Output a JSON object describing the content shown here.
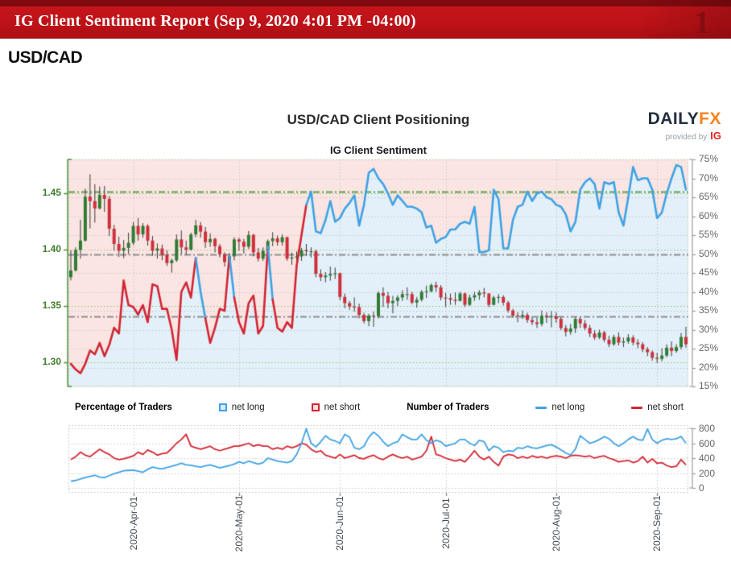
{
  "header": {
    "title": "IG Client Sentiment Report (Sep 9, 2020 4:01 PM -04:00)",
    "watermark": "1"
  },
  "page": {
    "instrument": "USD/CAD"
  },
  "chart": {
    "title": "USD/CAD Client Positioning",
    "subtitle": "IG Client Sentiment"
  },
  "brand": {
    "daily": "DAILY",
    "fx": "FX",
    "provided_by": "provided by",
    "ig": "IG"
  },
  "legend": {
    "pct_title": "Percentage of Traders",
    "num_title": "Number of Traders",
    "net_long": "net long",
    "net_short": "net short"
  },
  "colors": {
    "pink_fill": "#fbe5e3",
    "blue_fill": "#e3f0f9",
    "line_red": "#d42432",
    "line_blue": "#3ea2e5",
    "candle_green": "#2f7d33",
    "candle_red": "#cf2f3a",
    "wick": "#3a3a3a",
    "grid_green": "#96c479",
    "grid_gray": "#c9c9c9",
    "dashdot_gray": "#8d8d8d",
    "dashdot_green": "#5ea04b",
    "axis_green": "#4f8f3d",
    "axis_gray": "#9a9a9a",
    "header_red": "#bb1217"
  },
  "chart_data": {
    "type": "mixed",
    "subtypes": [
      "candlestick",
      "line",
      "area"
    ],
    "title": "USD/CAD Client Positioning",
    "subtitle": "IG Client Sentiment",
    "x_ticks": [
      "2020-Apr-01",
      "2020-May-01",
      "2020-Jun-01",
      "2020-Jul-01",
      "2020-Aug-01",
      "2020-Sep-01"
    ],
    "x_tick_day_index": [
      13,
      35,
      56,
      78,
      101,
      122
    ],
    "days_total": 129,
    "price_axis": {
      "labels": [
        "1.45",
        "1.40",
        "1.35",
        "1.30"
      ],
      "values": [
        1.45,
        1.4,
        1.35,
        1.3
      ],
      "range": [
        1.2785,
        1.4815
      ]
    },
    "pct_axis": {
      "labels": [
        "75%",
        "70%",
        "65%",
        "60%",
        "55%",
        "50%",
        "45%",
        "40%",
        "35%",
        "30%",
        "25%",
        "20%",
        "15%"
      ],
      "values": [
        75,
        70,
        65,
        60,
        55,
        50,
        45,
        40,
        35,
        30,
        25,
        20,
        15
      ],
      "range": [
        15,
        75
      ]
    },
    "count_axis": {
      "labels": [
        "800",
        "600",
        "400",
        "200",
        "0"
      ],
      "values": [
        800,
        600,
        400,
        200,
        0
      ],
      "range": [
        0,
        900
      ]
    },
    "reference_lines_pct": [
      {
        "value": 66.5,
        "style": "dashdot",
        "color": "green",
        "meaning": "current net-long pct"
      },
      {
        "value": 50.0,
        "style": "dashdot",
        "color": "gray",
        "meaning": "midline"
      },
      {
        "value": 33.5,
        "style": "dashdot",
        "color": "gray",
        "meaning": "current net-short pct"
      }
    ],
    "first_open": 1.3755,
    "candles": [
      [
        1.3815,
        1.3727,
        1.3995
      ],
      [
        1.3998,
        1.3805,
        1.402
      ],
      [
        1.408,
        1.392,
        1.4265
      ],
      [
        1.447,
        1.407,
        1.454
      ],
      [
        1.443,
        1.4188,
        1.4668
      ],
      [
        1.4365,
        1.424,
        1.458
      ],
      [
        1.4485,
        1.4355,
        1.456
      ],
      [
        1.445,
        1.4335,
        1.4565
      ],
      [
        1.4185,
        1.412,
        1.4475
      ],
      [
        1.405,
        1.399,
        1.422
      ],
      [
        1.399,
        1.3935,
        1.4115
      ],
      [
        1.4015,
        1.3925,
        1.4085
      ],
      [
        1.406,
        1.396,
        1.415
      ],
      [
        1.421,
        1.404,
        1.4245
      ],
      [
        1.4135,
        1.408,
        1.428
      ],
      [
        1.421,
        1.4105,
        1.4235
      ],
      [
        1.408,
        1.4035,
        1.4225
      ],
      [
        1.399,
        1.3945,
        1.412
      ],
      [
        1.401,
        1.392,
        1.4055
      ],
      [
        1.3955,
        1.3905,
        1.4045
      ],
      [
        1.388,
        1.3855,
        1.3995
      ],
      [
        1.3905,
        1.3795,
        1.392
      ],
      [
        1.409,
        1.389,
        1.4135
      ],
      [
        1.402,
        1.396,
        1.417
      ],
      [
        1.4,
        1.3955,
        1.408
      ],
      [
        1.4135,
        1.399,
        1.415
      ],
      [
        1.4215,
        1.411,
        1.4265
      ],
      [
        1.416,
        1.4105,
        1.4245
      ],
      [
        1.4065,
        1.4015,
        1.42
      ],
      [
        1.4095,
        1.4025,
        1.4145
      ],
      [
        1.403,
        1.3975,
        1.4105
      ],
      [
        1.396,
        1.393,
        1.405
      ],
      [
        1.389,
        1.385,
        1.3975
      ],
      [
        1.394,
        1.3845,
        1.397
      ],
      [
        1.409,
        1.3905,
        1.411
      ],
      [
        1.407,
        1.399,
        1.4105
      ],
      [
        1.4025,
        1.3965,
        1.4095
      ],
      [
        1.413,
        1.4005,
        1.4165
      ],
      [
        1.3975,
        1.394,
        1.414
      ],
      [
        1.392,
        1.3895,
        1.4015
      ],
      [
        1.399,
        1.39,
        1.402
      ],
      [
        1.4075,
        1.3955,
        1.409
      ],
      [
        1.41,
        1.403,
        1.4155
      ],
      [
        1.4065,
        1.4035,
        1.4125
      ],
      [
        1.411,
        1.4035,
        1.4135
      ],
      [
        1.392,
        1.39,
        1.4115
      ],
      [
        1.393,
        1.3865,
        1.3975
      ],
      [
        1.394,
        1.387,
        1.3985
      ],
      [
        1.3995,
        1.39,
        1.4015
      ],
      [
        1.3985,
        1.3945,
        1.405
      ],
      [
        1.3985,
        1.393,
        1.402
      ],
      [
        1.3785,
        1.3755,
        1.4
      ],
      [
        1.3755,
        1.372,
        1.3825
      ],
      [
        1.377,
        1.371,
        1.38
      ],
      [
        1.3785,
        1.3725,
        1.385
      ],
      [
        1.379,
        1.374,
        1.384
      ],
      [
        1.358,
        1.355,
        1.3795
      ],
      [
        1.3525,
        1.348,
        1.361
      ],
      [
        1.3495,
        1.3465,
        1.3545
      ],
      [
        1.349,
        1.345,
        1.3575
      ],
      [
        1.342,
        1.339,
        1.352
      ],
      [
        1.3365,
        1.3345,
        1.344
      ],
      [
        1.3415,
        1.332,
        1.343
      ],
      [
        1.341,
        1.3315,
        1.345
      ],
      [
        1.3615,
        1.339,
        1.363
      ],
      [
        1.359,
        1.349,
        1.3665
      ],
      [
        1.3525,
        1.348,
        1.3625
      ],
      [
        1.3545,
        1.3435,
        1.359
      ],
      [
        1.3575,
        1.35,
        1.3595
      ],
      [
        1.3605,
        1.3545,
        1.364
      ],
      [
        1.3605,
        1.3555,
        1.3665
      ],
      [
        1.353,
        1.3515,
        1.3625
      ],
      [
        1.3555,
        1.3485,
        1.358
      ],
      [
        1.3625,
        1.354,
        1.364
      ],
      [
        1.363,
        1.357,
        1.368
      ],
      [
        1.3685,
        1.362,
        1.37
      ],
      [
        1.3665,
        1.3625,
        1.3715
      ],
      [
        1.3575,
        1.355,
        1.3685
      ],
      [
        1.357,
        1.349,
        1.3615
      ],
      [
        1.3555,
        1.351,
        1.361
      ],
      [
        1.3545,
        1.351,
        1.362
      ],
      [
        1.361,
        1.354,
        1.3625
      ],
      [
        1.351,
        1.349,
        1.362
      ],
      [
        1.3575,
        1.35,
        1.36
      ],
      [
        1.3595,
        1.3545,
        1.3625
      ],
      [
        1.362,
        1.3555,
        1.364
      ],
      [
        1.361,
        1.3575,
        1.366
      ],
      [
        1.351,
        1.349,
        1.3615
      ],
      [
        1.3575,
        1.3505,
        1.359
      ],
      [
        1.358,
        1.3525,
        1.3605
      ],
      [
        1.353,
        1.3505,
        1.3595
      ],
      [
        1.346,
        1.344,
        1.3545
      ],
      [
        1.3415,
        1.3395,
        1.3475
      ],
      [
        1.341,
        1.3355,
        1.3445
      ],
      [
        1.342,
        1.3385,
        1.346
      ],
      [
        1.3375,
        1.335,
        1.344
      ],
      [
        1.3355,
        1.333,
        1.3405
      ],
      [
        1.334,
        1.3305,
        1.3395
      ],
      [
        1.3415,
        1.332,
        1.346
      ],
      [
        1.3405,
        1.335,
        1.3445
      ],
      [
        1.341,
        1.331,
        1.3455
      ],
      [
        1.3385,
        1.335,
        1.3445
      ],
      [
        1.3305,
        1.3285,
        1.34
      ],
      [
        1.327,
        1.323,
        1.333
      ],
      [
        1.33,
        1.3245,
        1.334
      ],
      [
        1.3385,
        1.326,
        1.34
      ],
      [
        1.3345,
        1.3305,
        1.34
      ],
      [
        1.3305,
        1.3285,
        1.3375
      ],
      [
        1.3255,
        1.3225,
        1.333
      ],
      [
        1.322,
        1.32,
        1.3285
      ],
      [
        1.3265,
        1.3205,
        1.329
      ],
      [
        1.32,
        1.318,
        1.328
      ],
      [
        1.316,
        1.3135,
        1.3235
      ],
      [
        1.3225,
        1.3145,
        1.3245
      ],
      [
        1.3175,
        1.315,
        1.3265
      ],
      [
        1.3185,
        1.3135,
        1.322
      ],
      [
        1.322,
        1.3165,
        1.325
      ],
      [
        1.3175,
        1.315,
        1.324
      ],
      [
        1.316,
        1.3125,
        1.3205
      ],
      [
        1.3115,
        1.309,
        1.318
      ],
      [
        1.309,
        1.3055,
        1.3135
      ],
      [
        1.304,
        1.3015,
        1.3105
      ],
      [
        1.303,
        1.2994,
        1.3085
      ],
      [
        1.306,
        1.301,
        1.3125
      ],
      [
        1.313,
        1.3045,
        1.316
      ],
      [
        1.31,
        1.3055,
        1.3185
      ],
      [
        1.3135,
        1.3085,
        1.316
      ],
      [
        1.3225,
        1.3115,
        1.326
      ],
      [
        1.316,
        1.313,
        1.3315
      ]
    ],
    "net_long_pct": [
      21,
      19.5,
      18.5,
      21,
      24.5,
      23.5,
      26.5,
      23,
      26,
      30.5,
      29,
      43,
      36.5,
      36,
      34,
      36.5,
      32,
      42,
      41.5,
      35.5,
      35.5,
      30,
      22,
      40,
      42.5,
      38.5,
      49,
      40,
      33,
      26.5,
      30.5,
      35.5,
      35,
      49.5,
      38.5,
      32,
      29,
      37,
      39,
      29,
      31,
      52,
      38,
      30.5,
      29.5,
      32,
      30.5,
      47,
      55,
      63,
      66.5,
      56,
      55.5,
      59,
      64,
      58.5,
      59.5,
      62,
      63.5,
      65.5,
      57.5,
      63,
      71.5,
      72.5,
      70,
      68.5,
      66,
      63,
      65.5,
      64,
      62.5,
      62.5,
      62,
      61,
      57,
      57.5,
      53,
      54,
      54.5,
      56.5,
      56.5,
      58,
      58.5,
      58,
      62.5,
      50.5,
      50.5,
      51,
      67,
      64.5,
      51.5,
      51.5,
      59,
      62.5,
      63,
      66.5,
      64,
      66,
      66.5,
      65,
      64.5,
      63,
      62.5,
      60.5,
      56,
      58.5,
      67,
      69,
      70,
      68.5,
      62,
      69,
      68.5,
      69,
      61,
      57.5,
      65,
      73,
      69.5,
      70,
      70,
      67,
      59.5,
      61,
      66,
      70,
      73.5,
      73,
      67
    ],
    "sentiment_blue_days": [
      27,
      28,
      34,
      42
    ],
    "sentiment_blue_from": 50,
    "net_long_count": [
      90,
      100,
      120,
      140,
      155,
      170,
      145,
      140,
      165,
      190,
      210,
      230,
      235,
      240,
      225,
      210,
      250,
      280,
      265,
      255,
      275,
      290,
      310,
      330,
      310,
      305,
      290,
      280,
      295,
      310,
      290,
      270,
      285,
      300,
      320,
      350,
      330,
      360,
      340,
      320,
      340,
      400,
      380,
      360,
      350,
      340,
      360,
      450,
      600,
      795,
      600,
      550,
      620,
      700,
      650,
      630,
      600,
      720,
      680,
      540,
      520,
      560,
      680,
      750,
      700,
      620,
      560,
      600,
      620,
      720,
      680,
      650,
      650,
      720,
      640,
      600,
      640,
      620,
      560,
      580,
      600,
      650,
      650,
      600,
      570,
      640,
      620,
      500,
      560,
      540,
      480,
      500,
      490,
      540,
      530,
      560,
      540,
      530,
      550,
      570,
      580,
      550,
      510,
      470,
      440,
      520,
      700,
      650,
      600,
      620,
      650,
      690,
      660,
      600,
      560,
      600,
      650,
      690,
      650,
      640,
      790,
      650,
      600,
      640,
      660,
      650,
      660,
      690,
      600
    ],
    "net_short_count": [
      380,
      420,
      480,
      440,
      420,
      470,
      520,
      480,
      450,
      400,
      380,
      390,
      410,
      430,
      480,
      450,
      510,
      480,
      440,
      460,
      470,
      530,
      600,
      650,
      720,
      560,
      540,
      520,
      540,
      560,
      520,
      500,
      520,
      540,
      560,
      560,
      580,
      600,
      560,
      580,
      560,
      560,
      520,
      540,
      520,
      560,
      540,
      560,
      600,
      580,
      520,
      480,
      500,
      440,
      420,
      400,
      450,
      400,
      420,
      440,
      400,
      390,
      420,
      440,
      400,
      380,
      420,
      450,
      420,
      400,
      420,
      380,
      400,
      420,
      500,
      690,
      450,
      430,
      400,
      380,
      360,
      380,
      350,
      420,
      500,
      420,
      380,
      420,
      350,
      300,
      420,
      450,
      440,
      400,
      420,
      400,
      430,
      410,
      420,
      400,
      420,
      430,
      420,
      400,
      430,
      440,
      430,
      420,
      430,
      400,
      420,
      430,
      400,
      380,
      350,
      360,
      370,
      340,
      360,
      420,
      340,
      390,
      330,
      340,
      300,
      280,
      290,
      380,
      310
    ]
  }
}
